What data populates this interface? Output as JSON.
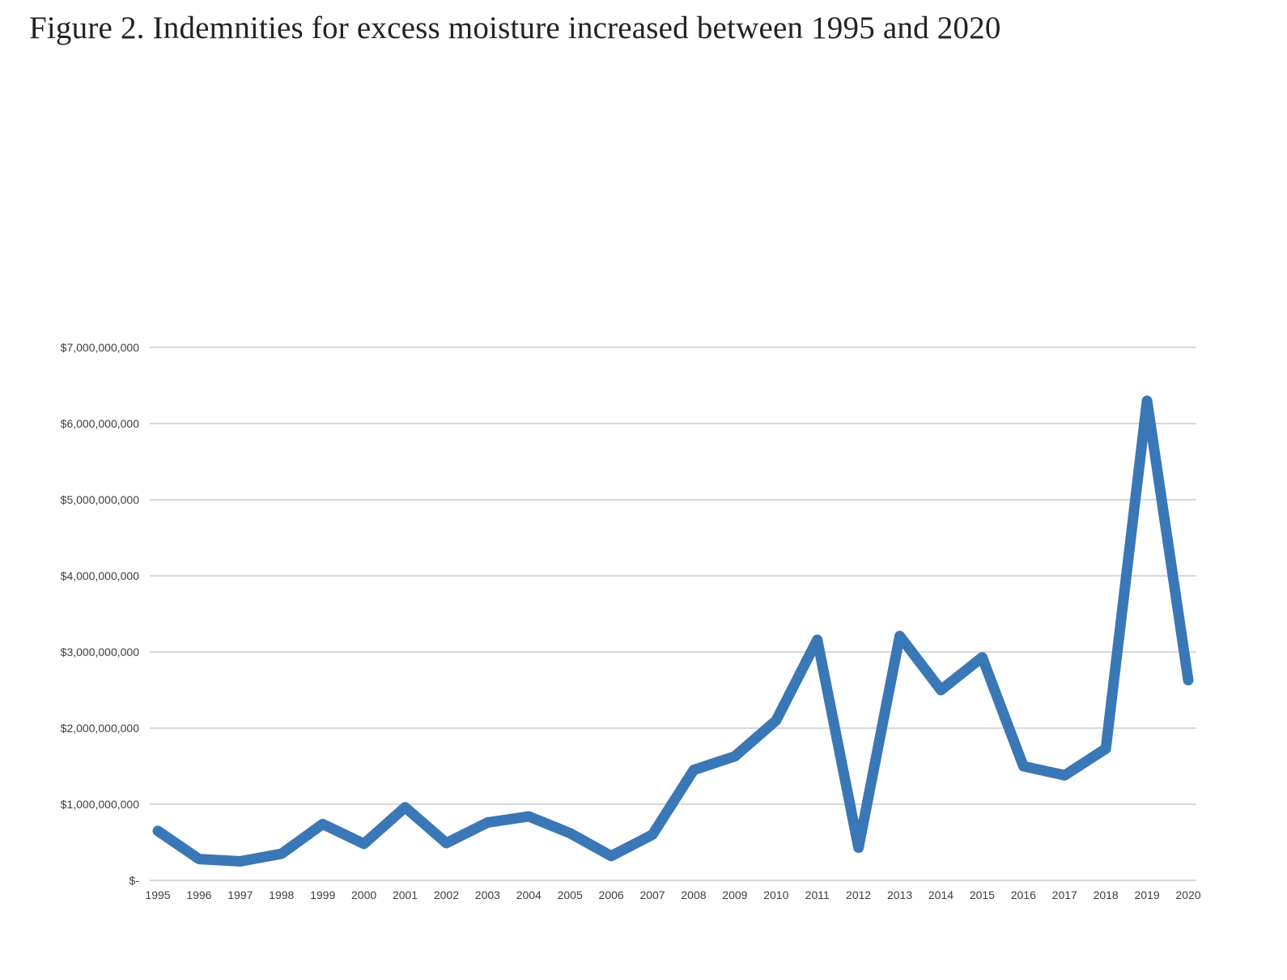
{
  "page": {
    "title": "Figure 2. Indemnities for excess moisture increased between 1995 and 2020"
  },
  "chart_data": {
    "type": "line",
    "title": "Figure 2. Indemnities for excess moisture increased between 1995 and 2020",
    "units": "USD",
    "series_name": "Indemnities for excess moisture",
    "categories": [
      "1995",
      "1996",
      "1997",
      "1998",
      "1999",
      "2000",
      "2001",
      "2002",
      "2003",
      "2004",
      "2005",
      "2006",
      "2007",
      "2008",
      "2009",
      "2010",
      "2011",
      "2012",
      "2013",
      "2014",
      "2015",
      "2016",
      "2017",
      "2018",
      "2019",
      "2020"
    ],
    "values_billions": [
      0.65,
      0.28,
      0.25,
      0.35,
      0.74,
      0.48,
      0.96,
      0.49,
      0.76,
      0.84,
      0.62,
      0.32,
      0.6,
      1.45,
      1.63,
      2.1,
      3.16,
      0.43,
      3.21,
      2.5,
      2.93,
      1.5,
      1.38,
      1.73,
      6.3,
      2.63
    ],
    "xlabel": "",
    "ylabel": "",
    "ylim_billions": [
      0,
      7
    ],
    "grid": "horizontal",
    "legend": "none",
    "y_axis": {
      "tick_values_billions": [
        0,
        1,
        2,
        3,
        4,
        5,
        6,
        7
      ],
      "tick_labels": [
        "$-",
        "$1,000,000,000",
        "$2,000,000,000",
        "$3,000,000,000",
        "$4,000,000,000",
        "$5,000,000,000",
        "$6,000,000,000",
        "$7,000,000,000"
      ]
    },
    "x_axis": {
      "tick_labels": [
        "1995",
        "1996",
        "1997",
        "1998",
        "1999",
        "2000",
        "2001",
        "2002",
        "2003",
        "2004",
        "2005",
        "2006",
        "2007",
        "2008",
        "2009",
        "2010",
        "2011",
        "2012",
        "2013",
        "2014",
        "2015",
        "2016",
        "2017",
        "2018",
        "2019",
        "2020"
      ]
    },
    "colors": {
      "line": "#3a77b7",
      "gridline": "#d9d9d9",
      "axis_text": "#3f3f3f",
      "title_text": "#232323",
      "background": "#ffffff"
    }
  }
}
